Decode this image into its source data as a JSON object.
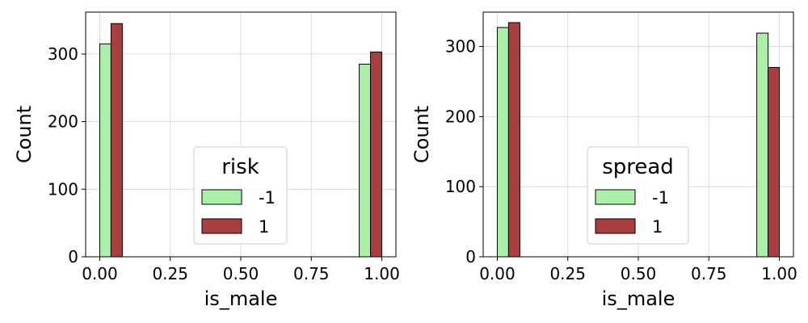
{
  "chart_data": [
    {
      "type": "bar",
      "xlabel": "is_male",
      "ylabel": "Count",
      "xlim": [
        -0.05,
        1.05
      ],
      "ylim": [
        0,
        362
      ],
      "xticks": [
        "0.00",
        "0.25",
        "0.50",
        "0.75",
        "1.00"
      ],
      "yticks": [
        "0",
        "100",
        "200",
        "300"
      ],
      "grid": true,
      "legend": {
        "title": "risk",
        "placement": "center-right"
      },
      "x": [
        0,
        1
      ],
      "series": [
        {
          "name": "-1",
          "color": "#abf0a9",
          "values": [
            315,
            285
          ]
        },
        {
          "name": "1",
          "color": "#a93f3f",
          "values": [
            345,
            303
          ]
        }
      ]
    },
    {
      "type": "bar",
      "xlabel": "is_male",
      "ylabel": "Count",
      "xlim": [
        -0.05,
        1.05
      ],
      "ylim": [
        0,
        349
      ],
      "xticks": [
        "0.00",
        "0.25",
        "0.50",
        "0.75",
        "1.00"
      ],
      "yticks": [
        "0",
        "100",
        "200",
        "300"
      ],
      "grid": true,
      "legend": {
        "title": "spread",
        "placement": "center-right"
      },
      "x": [
        0,
        1
      ],
      "series": [
        {
          "name": "-1",
          "color": "#abf0a9",
          "values": [
            327,
            319
          ]
        },
        {
          "name": "1",
          "color": "#a93f3f",
          "values": [
            334,
            270
          ]
        }
      ]
    }
  ]
}
